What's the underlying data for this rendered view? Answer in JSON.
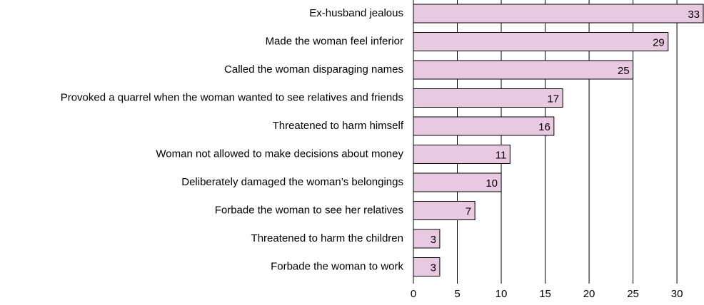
{
  "chart_data": {
    "type": "bar",
    "orientation": "horizontal",
    "categories": [
      "Ex-husband jealous",
      "Made the woman feel inferior",
      "Called the woman disparaging names",
      "Provoked a quarrel when the woman wanted to see relatives and friends",
      "Threatened to harm himself",
      "Woman not allowed to make decisions about money",
      "Deliberately damaged the woman’s belongings",
      "Forbade the woman to see her relatives",
      "Threatened to harm the children",
      "Forbade the woman to work"
    ],
    "values": [
      33,
      29,
      25,
      17,
      16,
      11,
      10,
      7,
      3,
      3
    ],
    "color": "#e9c9e1",
    "xlim": [
      0,
      33
    ],
    "xticks": [
      0,
      5,
      10,
      15,
      20,
      25,
      30
    ],
    "grid": true
  }
}
